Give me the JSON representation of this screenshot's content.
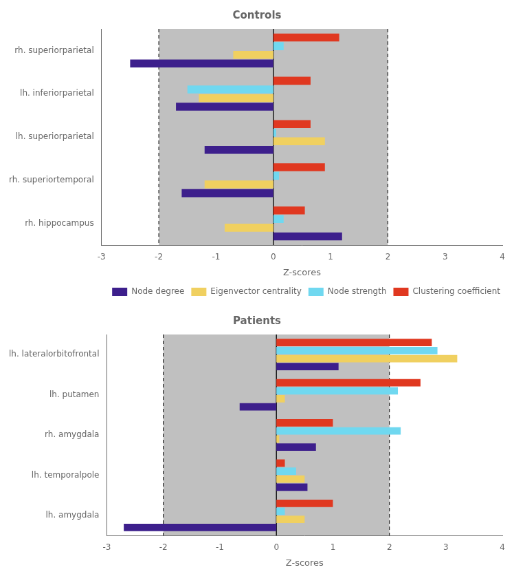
{
  "chart_data": [
    {
      "type": "bar",
      "orientation": "horizontal",
      "title": "Controls",
      "categories": [
        "rh. superiorparietal",
        "lh. inferiorparietal",
        "lh. superiorparietal",
        "rh. superiortemporal",
        "rh. hippocampus"
      ],
      "series": [
        {
          "name": "Node degree",
          "color": "#3d1f8c",
          "values": [
            -2.5,
            -1.7,
            -1.2,
            -1.6,
            1.2
          ]
        },
        {
          "name": "Eigenvector centrality",
          "color": "#f0d060",
          "values": [
            -0.7,
            -1.3,
            0.9,
            -1.2,
            -0.85
          ]
        },
        {
          "name": "Node strength",
          "color": "#70d8f0",
          "values": [
            0.18,
            -1.5,
            0.05,
            0.1,
            0.18
          ]
        },
        {
          "name": "Clustering coefficient",
          "color": "#e03820",
          "values": [
            1.15,
            0.65,
            0.65,
            0.9,
            0.55
          ]
        }
      ],
      "xlabel": "Z-scores",
      "xlim": [
        -3,
        4
      ],
      "xticks": [
        -3,
        -2,
        -1,
        0,
        1,
        2,
        3,
        4
      ],
      "grid": false,
      "legend": "lower right",
      "shaded_region": {
        "range": [
          -2,
          2
        ],
        "color": "#c0c0c0"
      },
      "reference_lines": [
        {
          "value": 0,
          "line_style": "solid"
        },
        {
          "value": -2,
          "line_style": "dashed"
        },
        {
          "value": 2,
          "line_style": "dashed"
        }
      ]
    },
    {
      "type": "bar",
      "orientation": "horizontal",
      "title": "Patients",
      "categories": [
        "lh. lateralorbitofrontal",
        "lh. putamen",
        "rh. amygdala",
        "lh. temporalpole",
        "lh. amygdala"
      ],
      "series": [
        {
          "name": "Node degree",
          "color": "#3d1f8c",
          "values": [
            1.1,
            -0.65,
            0.7,
            0.55,
            -2.7
          ]
        },
        {
          "name": "Eigenvector centrality",
          "color": "#f0d060",
          "values": [
            3.2,
            0.15,
            0.05,
            0.5,
            0.5
          ]
        },
        {
          "name": "Node strength",
          "color": "#70d8f0",
          "values": [
            2.85,
            2.15,
            2.2,
            0.35,
            0.15
          ]
        },
        {
          "name": "Clustering coefficient",
          "color": "#e03820",
          "values": [
            2.75,
            2.55,
            1.0,
            0.15,
            1.0
          ]
        }
      ],
      "xlabel": "Z-scores",
      "xlim": [
        -3,
        4
      ],
      "xticks": [
        -3,
        -2,
        -1,
        0,
        1,
        2,
        3,
        4
      ],
      "grid": false,
      "shaded_region": {
        "range": [
          -2,
          2
        ],
        "color": "#c0c0c0"
      },
      "reference_lines": [
        {
          "value": 0,
          "line_style": "solid"
        },
        {
          "value": -2,
          "line_style": "dashed"
        },
        {
          "value": 2,
          "line_style": "dashed"
        }
      ]
    }
  ]
}
